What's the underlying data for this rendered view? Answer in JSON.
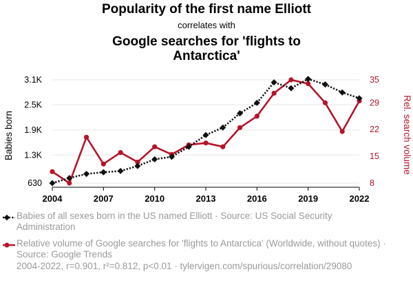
{
  "header": {
    "title": "Popularity of the first name Elliott",
    "subtitle": "correlates with",
    "title2": "Google searches for 'flights to Antarctica'"
  },
  "colors": {
    "series1": "#111111",
    "series2": "#b5142a",
    "grid": "#e6e6e6"
  },
  "chart_data": {
    "type": "line",
    "x": [
      2004,
      2005,
      2006,
      2007,
      2008,
      2009,
      2010,
      2011,
      2012,
      2013,
      2014,
      2015,
      2016,
      2017,
      2018,
      2019,
      2020,
      2021,
      2022
    ],
    "x_ticks": [
      "2004",
      "2007",
      "2010",
      "2013",
      "2016",
      "2019",
      "2022"
    ],
    "xlim": [
      2004,
      2022
    ],
    "y_left": {
      "label": "Babies born",
      "ticks": [
        "630",
        "1.3K",
        "1.9K",
        "2.5K",
        "3.1K"
      ],
      "tick_values": [
        630,
        1300,
        1900,
        2500,
        3100
      ],
      "ylim": [
        630,
        3100
      ]
    },
    "y_right": {
      "label": "Rel. search volume",
      "ticks": [
        "8",
        "15",
        "22",
        "29",
        "35"
      ],
      "tick_values": [
        8,
        15,
        22,
        29,
        35
      ],
      "ylim": [
        8,
        35
      ]
    },
    "series": [
      {
        "name": "Babies of all sexes born in the US named Elliott",
        "axis": "left",
        "style": "dotted",
        "marker": "diamond",
        "values": [
          630,
          750,
          850,
          890,
          920,
          1040,
          1200,
          1260,
          1500,
          1780,
          1960,
          2300,
          2550,
          3040,
          2900,
          3120,
          2990,
          2800,
          2660
        ]
      },
      {
        "name": "Relative volume of Google searches for 'flights to Antarctica'",
        "axis": "right",
        "style": "solid",
        "marker": "circle",
        "values": [
          11,
          8,
          20,
          13,
          16,
          13.5,
          17.5,
          15.5,
          18,
          18.5,
          17.5,
          22.5,
          25.5,
          31.5,
          35,
          34,
          29,
          21.5,
          29.5
        ]
      }
    ],
    "grid": true,
    "legend_position": "bottom"
  },
  "legend": {
    "items": [
      {
        "text": "Babies of all sexes born in the US named Elliott · Source: US Social Security Administration"
      },
      {
        "text": "Relative volume of Google searches for 'flights to Antarctica' (Worldwide, without quotes) · Source: Google Trends"
      }
    ]
  },
  "footer": {
    "text": "2004-2022, r=0.901, r²=0.812, p<0.01 · tylervigen.com/spurious/correlation/29080"
  }
}
